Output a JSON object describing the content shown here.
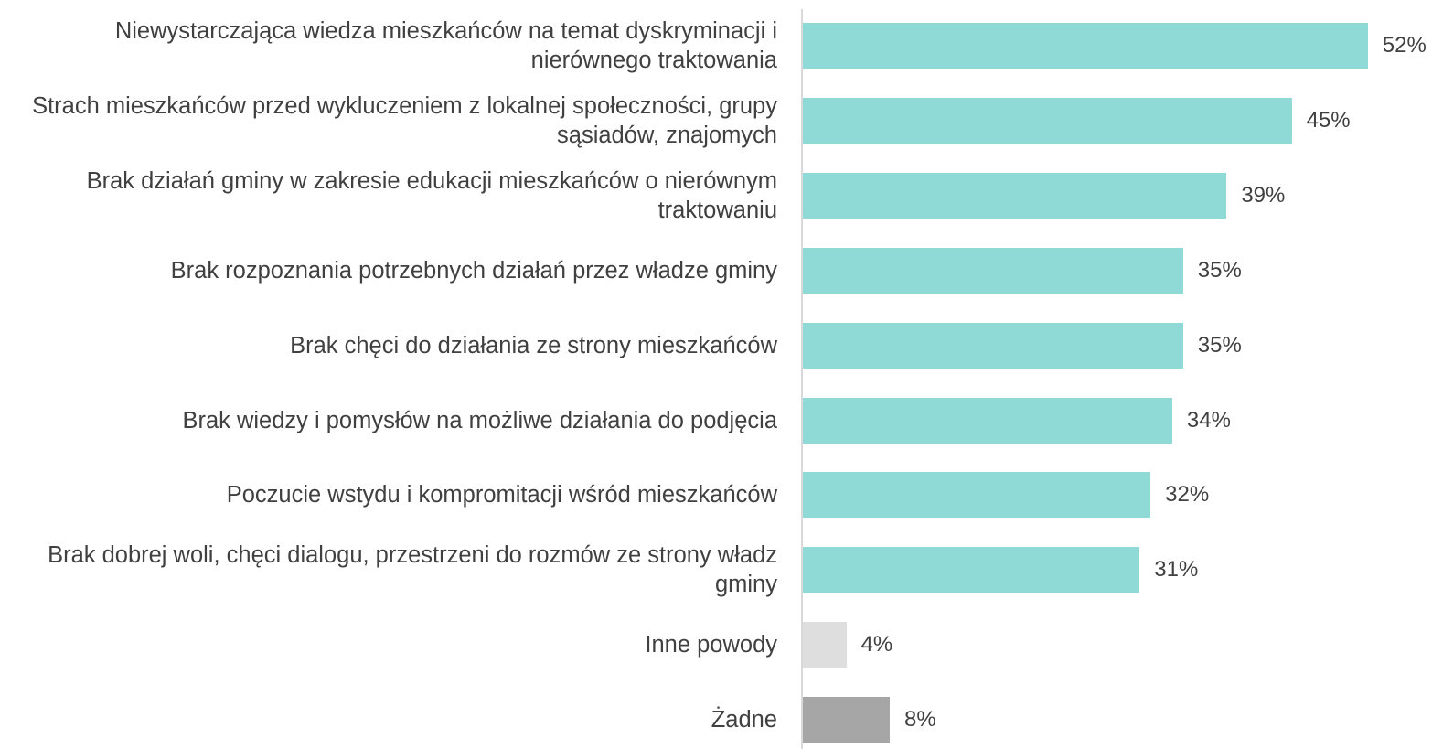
{
  "chart_data": {
    "type": "bar",
    "orientation": "horizontal",
    "categories": [
      "Niewystarczająca wiedza mieszkańców na temat dyskryminacji i nierównego traktowania",
      "Strach mieszkańców przed wykluczeniem z lokalnej społeczności, grupy sąsiadów, znajomych",
      "Brak działań gminy w zakresie edukacji mieszkańców o nierównym traktowaniu",
      "Brak rozpoznania potrzebnych działań przez władze gminy",
      "Brak chęci do działania ze strony mieszkańców",
      "Brak wiedzy i pomysłów na możliwe działania do podjęcia",
      "Poczucie wstydu i kompromitacji wśród mieszkańców",
      "Brak dobrej woli, chęci dialogu, przestrzeni do rozmów ze strony władz gminy",
      "Inne powody",
      "Żadne"
    ],
    "values": [
      52,
      45,
      39,
      35,
      35,
      34,
      32,
      31,
      4,
      8
    ],
    "value_labels": [
      "52%",
      "45%",
      "39%",
      "35%",
      "35%",
      "34%",
      "32%",
      "31%",
      "4%",
      "8%"
    ],
    "colors": [
      "#8fd9d6",
      "#8fd9d6",
      "#8fd9d6",
      "#8fd9d6",
      "#8fd9d6",
      "#8fd9d6",
      "#8fd9d6",
      "#8fd9d6",
      "#dedede",
      "#a6a6a6"
    ]
  }
}
